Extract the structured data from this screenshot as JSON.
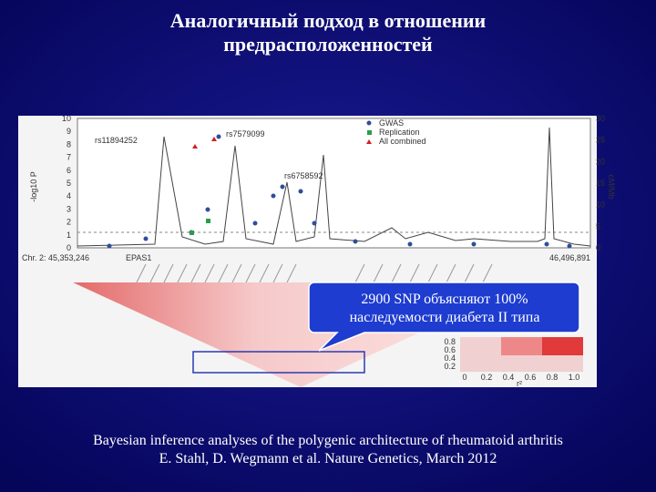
{
  "slide": {
    "title": [
      "Аналогичный подход в отношении",
      "предрасположенностей"
    ],
    "figure": {
      "left_axis_label": "-log10 P",
      "left_ticks": [
        "10",
        "9",
        "8",
        "7",
        "6",
        "5",
        "4",
        "3",
        "2",
        "1",
        "0"
      ],
      "right_axis_label": "cM/Mb",
      "right_ticks": [
        "30",
        "25",
        "20",
        "15",
        "10",
        "5",
        "0"
      ],
      "snps": [
        "rs11894252",
        "rs7579099",
        "rs6758592"
      ],
      "legend": [
        "GWAS",
        "Replication",
        "All combined"
      ],
      "chr_label": "Chr. 2: 45,353,246",
      "gene_label": "EPAS1",
      "end_label": "46,496,891",
      "r2_ticks": [
        "0.8",
        "0.6",
        "0.4",
        "0.2"
      ],
      "r2_axis": [
        "0",
        "0.2",
        "0.4",
        "0.6",
        "0.8",
        "1.0"
      ],
      "r2_label": "r²"
    },
    "callout": [
      "2900 SNP объясняют 100%",
      "наследуемости диабета II типа"
    ],
    "citation": [
      "Bayesian inference analyses of the polygenic architecture of rheumatoid arthritis",
      "E. Stahl, D. Wegmann et al. Nature Genetics, March 2012"
    ]
  }
}
